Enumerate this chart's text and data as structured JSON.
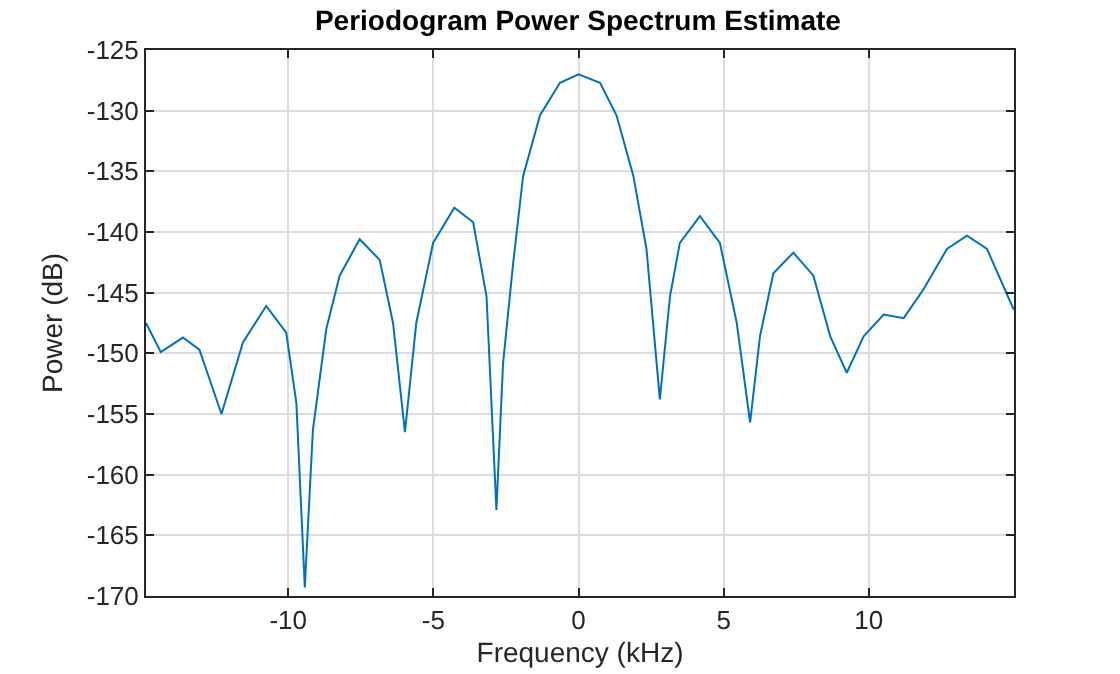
{
  "chart_data": {
    "type": "line",
    "title": "Periodogram Power Spectrum Estimate",
    "xlabel": "Frequency (kHz)",
    "ylabel": "Power (dB)",
    "x": [
      -14.9,
      -14.39,
      -13.63,
      -13.06,
      -12.3,
      -11.56,
      -10.76,
      -10.07,
      -9.72,
      -9.43,
      -9.15,
      -8.69,
      -8.23,
      -7.54,
      -6.85,
      -6.39,
      -5.98,
      -5.59,
      -5.01,
      -4.28,
      -3.63,
      -3.17,
      -2.83,
      -2.6,
      -2.25,
      -1.91,
      -1.33,
      -0.64,
      0,
      0.74,
      1.31,
      1.89,
      2.34,
      2.8,
      3.15,
      3.49,
      4.18,
      4.87,
      5.45,
      5.91,
      6.25,
      6.71,
      7.4,
      8.09,
      8.67,
      9.24,
      9.82,
      10.51,
      11.2,
      11.89,
      12.69,
      13.38,
      14.07,
      14.99
    ],
    "series": [
      {
        "color": "#0072bd",
        "values": [
          -147.5,
          -149.9,
          -148.7,
          -149.7,
          -155.0,
          -149.1,
          -146.1,
          -148.3,
          -154.1,
          -169.3,
          -156.3,
          -148.0,
          -143.6,
          -140.6,
          -142.3,
          -147.5,
          -156.5,
          -147.5,
          -140.9,
          -138.0,
          -139.2,
          -145.3,
          -162.9,
          -150.8,
          -142.5,
          -135.4,
          -130.4,
          -127.7,
          -127.0,
          -127.7,
          -130.4,
          -135.4,
          -141.4,
          -153.8,
          -145.3,
          -140.9,
          -138.7,
          -140.9,
          -147.5,
          -155.7,
          -148.6,
          -143.4,
          -141.7,
          -143.6,
          -148.6,
          -151.6,
          -148.6,
          -146.8,
          -147.1,
          -144.7,
          -141.4,
          -140.3,
          -141.4,
          -146.4
        ]
      }
    ],
    "xlim": [
      -14.9,
      15
    ],
    "ylim": [
      -170,
      -125
    ],
    "xticks": [
      -10,
      -5,
      0,
      5,
      10
    ],
    "yticks": [
      -170,
      -165,
      -160,
      -155,
      -150,
      -145,
      -140,
      -135,
      -130,
      -125
    ],
    "grid": true,
    "marker": "none",
    "line_style": "solid"
  }
}
